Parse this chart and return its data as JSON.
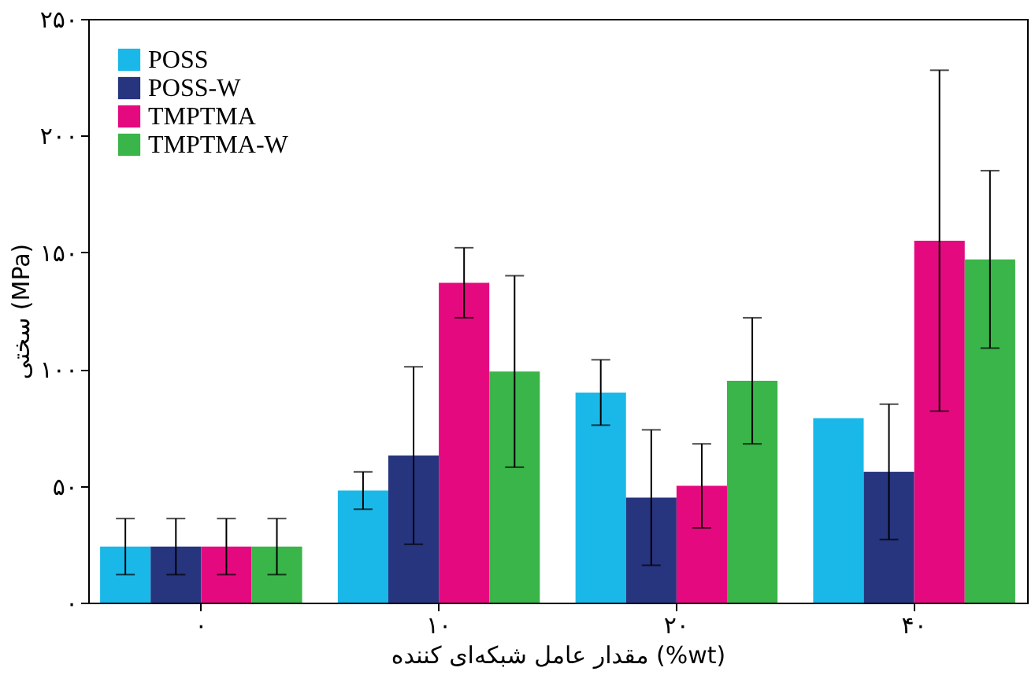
{
  "chart_data": {
    "type": "bar",
    "xlabel": "مقدار عامل شبکه‌ای کننده (%wt)",
    "ylabel": "سختی (MPa)",
    "categories": [
      "۰",
      "۱۰",
      "۲۰",
      "۴۰"
    ],
    "series": [
      {
        "name": "POSS",
        "color": "#1ab8e8",
        "values": [
          24,
          48,
          90,
          79
        ],
        "errors": [
          12,
          8,
          14,
          null
        ]
      },
      {
        "name": "POSS-W",
        "color": "#27357f",
        "values": [
          24,
          63,
          45,
          56
        ],
        "errors": [
          12,
          38,
          29,
          29
        ]
      },
      {
        "name": "TMPTMA",
        "color": "#e5097f",
        "values": [
          24,
          137,
          50,
          155
        ],
        "errors": [
          12,
          15,
          18,
          73
        ]
      },
      {
        "name": "TMPTMA-W",
        "color": "#3ab54a",
        "values": [
          24,
          99,
          95,
          147
        ],
        "errors": [
          12,
          41,
          27,
          38
        ]
      }
    ],
    "ylim": [
      0,
      250
    ],
    "yticks": [
      {
        "value": 0,
        "label": "۰"
      },
      {
        "value": 50,
        "label": "۵۰"
      },
      {
        "value": 100,
        "label": "۱۰۰"
      },
      {
        "value": 150,
        "label": "۱۵۰"
      },
      {
        "value": 200,
        "label": "۲۰۰"
      },
      {
        "value": 250,
        "label": "۲۵۰"
      }
    ],
    "grid": false,
    "legend": "top left"
  }
}
